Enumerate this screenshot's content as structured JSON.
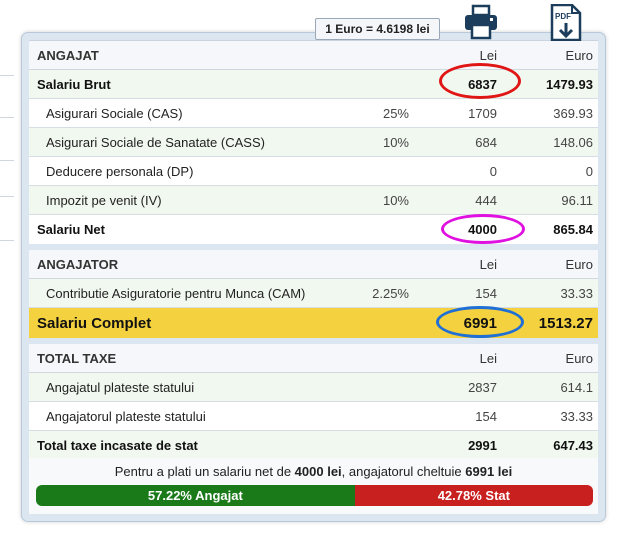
{
  "exchange_rate": "1 Euro = 4.6198 lei",
  "icons": {
    "print": "printer-icon",
    "pdf": "pdf-download-icon"
  },
  "pdf_badge": "PDF",
  "angajat": {
    "header": {
      "label": "ANGAJAT",
      "lei": "Lei",
      "eur": "Euro"
    },
    "rows": [
      {
        "label": "Salariu Brut",
        "pct": "",
        "lei": "6837",
        "eur": "1479.93"
      },
      {
        "label": "Asigurari Sociale (CAS)",
        "pct": "25%",
        "lei": "1709",
        "eur": "369.93"
      },
      {
        "label": "Asigurari Sociale de Sanatate (CASS)",
        "pct": "10%",
        "lei": "684",
        "eur": "148.06"
      },
      {
        "label": "Deducere personala (DP)",
        "pct": "",
        "lei": "0",
        "eur": "0"
      },
      {
        "label": "Impozit pe venit (IV)",
        "pct": "10%",
        "lei": "444",
        "eur": "96.11"
      },
      {
        "label": "Salariu Net",
        "pct": "",
        "lei": "4000",
        "eur": "865.84"
      }
    ]
  },
  "angajator": {
    "header": {
      "label": "ANGAJATOR",
      "lei": "Lei",
      "eur": "Euro"
    },
    "rows": [
      {
        "label": "Contributie Asiguratorie pentru Munca (CAM)",
        "pct": "2.25%",
        "lei": "154",
        "eur": "33.33"
      },
      {
        "label": "Salariu Complet",
        "pct": "",
        "lei": "6991",
        "eur": "1513.27"
      }
    ]
  },
  "taxe": {
    "header": {
      "label": "TOTAL TAXE",
      "lei": "Lei",
      "eur": "Euro"
    },
    "rows": [
      {
        "label": "Angajatul plateste statului",
        "lei": "2837",
        "eur": "614.1"
      },
      {
        "label": "Angajatorul plateste statului",
        "lei": "154",
        "eur": "33.33"
      },
      {
        "label": "Total taxe incasate de stat",
        "lei": "2991",
        "eur": "647.43"
      }
    ]
  },
  "summary": {
    "part1": "Pentru a plati un salariu net de ",
    "net": "4000 lei",
    "part2": ", angajatorul cheltuie ",
    "total": "6991 lei"
  },
  "split_bar": {
    "angajat_label": "57.22% Angajat",
    "angajat_share": 57.22,
    "stat_label": "42.78% Stat",
    "stat_share": 42.78,
    "angajat_color": "#1a7a1a",
    "stat_color": "#c81f1f"
  },
  "highlight_colors": {
    "brut": "#e01515",
    "net": "#e010e0",
    "complet": "#1f6fd6"
  }
}
